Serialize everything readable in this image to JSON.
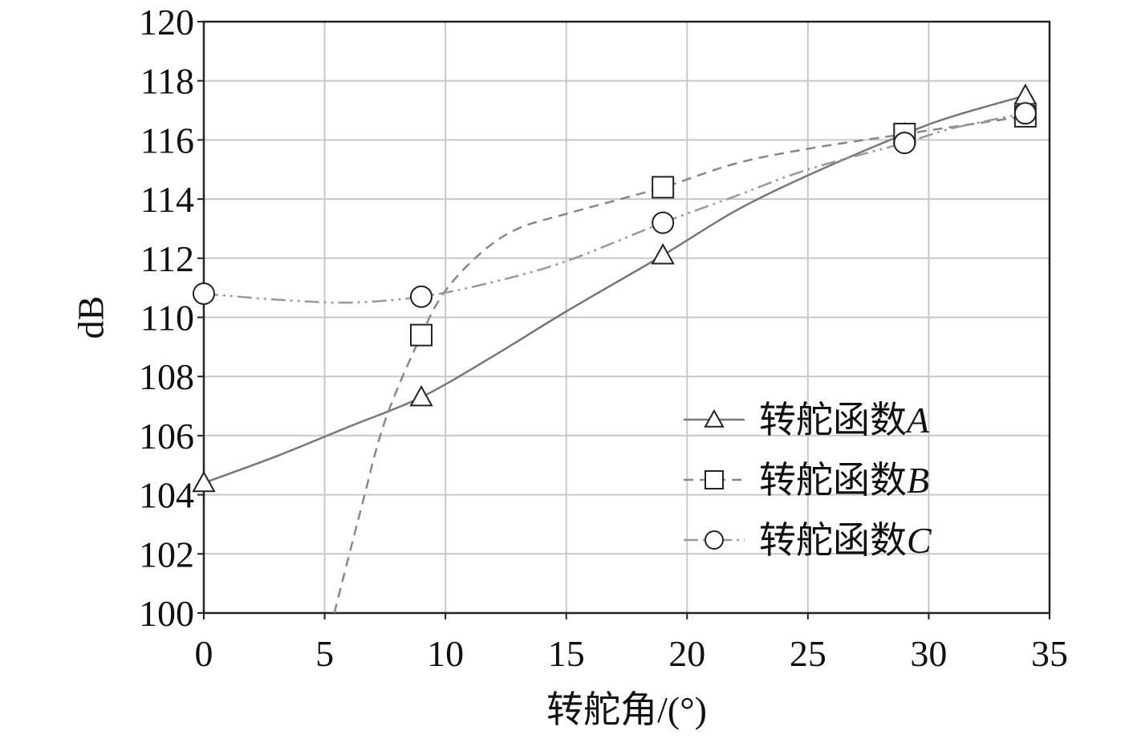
{
  "chart_data": {
    "type": "line",
    "title": "",
    "xlabel": "转舵角/(°)",
    "ylabel": "dB",
    "xlim": [
      0,
      35
    ],
    "ylim": [
      100,
      120
    ],
    "xticks": [
      0,
      5,
      10,
      15,
      20,
      25,
      30,
      35
    ],
    "yticks": [
      100,
      102,
      104,
      106,
      108,
      110,
      112,
      114,
      116,
      118,
      120
    ],
    "grid": true,
    "legend_position": "lower-right",
    "series": [
      {
        "name": "转舵函数A",
        "legend_base": "转舵函数",
        "legend_letter": "A",
        "marker": "triangle",
        "dash": "solid",
        "color": "#777777",
        "points": [
          [
            0,
            104.4
          ],
          [
            9,
            107.3
          ],
          [
            19,
            112.1
          ],
          [
            29,
            116.2
          ],
          [
            34,
            117.5
          ]
        ],
        "curve": [
          [
            0,
            104.4
          ],
          [
            3,
            105.3
          ],
          [
            6,
            106.3
          ],
          [
            9,
            107.3
          ],
          [
            12,
            108.7
          ],
          [
            15,
            110.2
          ],
          [
            19,
            112.1
          ],
          [
            22,
            113.6
          ],
          [
            25,
            114.8
          ],
          [
            29,
            116.2
          ],
          [
            31,
            116.8
          ],
          [
            34,
            117.5
          ]
        ]
      },
      {
        "name": "转舵函数B",
        "legend_base": "转舵函数",
        "legend_letter": "B",
        "marker": "square",
        "dash": "dashed",
        "color": "#888888",
        "points": [
          [
            9,
            109.4
          ],
          [
            19,
            114.4
          ],
          [
            29,
            116.2
          ],
          [
            34,
            116.8
          ]
        ],
        "curve": [
          [
            5.4,
            100
          ],
          [
            6.5,
            103.5
          ],
          [
            7.5,
            106.5
          ],
          [
            9,
            109.4
          ],
          [
            10,
            110.9
          ],
          [
            11.5,
            112.2
          ],
          [
            13,
            113
          ],
          [
            15,
            113.5
          ],
          [
            19,
            114.4
          ],
          [
            22,
            115.2
          ],
          [
            25,
            115.7
          ],
          [
            29,
            116.2
          ],
          [
            34,
            116.8
          ]
        ]
      },
      {
        "name": "转舵函数C",
        "legend_base": "转舵函数",
        "legend_letter": "C",
        "marker": "circle",
        "dash": "dash-dot",
        "color": "#999999",
        "points": [
          [
            0,
            110.8
          ],
          [
            9,
            110.7
          ],
          [
            19,
            113.2
          ],
          [
            29,
            115.9
          ],
          [
            34,
            116.9
          ]
        ],
        "curve": [
          [
            0,
            110.8
          ],
          [
            3,
            110.6
          ],
          [
            6,
            110.5
          ],
          [
            9,
            110.7
          ],
          [
            12,
            111.2
          ],
          [
            15,
            111.9
          ],
          [
            19,
            113.2
          ],
          [
            22,
            114.1
          ],
          [
            25,
            115
          ],
          [
            29,
            115.9
          ],
          [
            31,
            116.4
          ],
          [
            34,
            116.9
          ]
        ]
      }
    ]
  }
}
